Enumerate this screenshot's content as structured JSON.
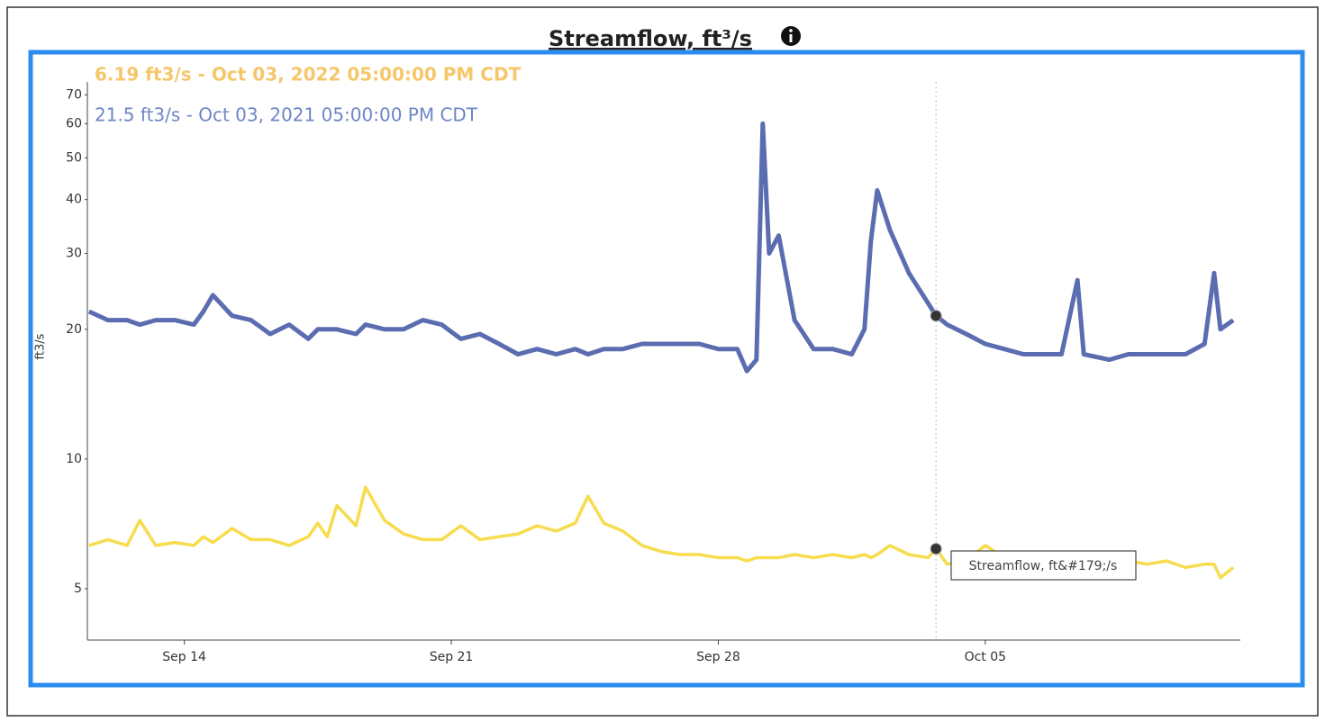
{
  "chart_data": {
    "type": "line",
    "title": "Streamflow, ft³/s",
    "y_label": "ft3/s",
    "annotations": [
      "6.19 ft3/s - Oct 03, 2022 05:00:00 PM CDT",
      "21.5 ft3/s - Oct 03, 2021 05:00:00 PM CDT"
    ],
    "tooltip": "Streamflow, ft&#179;/s",
    "log_scale": true,
    "grid": false,
    "xlim": [
      "09-11 11:00",
      "10-11 16:30"
    ],
    "xticks": [
      {
        "value": "09-14 00:00",
        "label": "Sep 14"
      },
      {
        "value": "09-21 00:00",
        "label": "Sep 21"
      },
      {
        "value": "09-28 00:00",
        "label": "Sep 28"
      },
      {
        "value": "10-05 00:00",
        "label": "Oct 05"
      }
    ],
    "ylim": [
      3.8,
      75
    ],
    "yticks": [
      5,
      10,
      20,
      30,
      40,
      50,
      60,
      70
    ],
    "hover": {
      "x": "10-03 17:00",
      "values": [
        21.5,
        6.19
      ]
    },
    "x": [
      "09-11 12:00",
      "09-12 00:00",
      "09-12 12:00",
      "09-12 20:00",
      "09-13 06:00",
      "09-13 18:00",
      "09-14 06:00",
      "09-14 12:00",
      "09-14 18:00",
      "09-15 06:00",
      "09-15 18:00",
      "09-16 06:00",
      "09-16 18:00",
      "09-17 06:00",
      "09-17 12:00",
      "09-17 18:00",
      "09-18 00:00",
      "09-18 12:00",
      "09-18 18:00",
      "09-19 06:00",
      "09-19 18:00",
      "09-20 06:00",
      "09-20 18:00",
      "09-21 06:00",
      "09-21 18:00",
      "09-22 06:00",
      "09-22 18:00",
      "09-23 06:00",
      "09-23 18:00",
      "09-24 06:00",
      "09-24 14:00",
      "09-25 00:00",
      "09-25 12:00",
      "09-26 00:00",
      "09-26 12:00",
      "09-27 00:00",
      "09-27 12:00",
      "09-28 00:00",
      "09-28 12:00",
      "09-28 18:00",
      "09-29 00:00",
      "09-29 04:00",
      "09-29 08:00",
      "09-29 14:00",
      "09-30 00:00",
      "09-30 12:00",
      "10-01 00:00",
      "10-01 12:00",
      "10-01 20:00",
      "10-02 00:00",
      "10-02 04:00",
      "10-02 12:00",
      "10-03 00:00",
      "10-03 12:00",
      "10-03 17:00",
      "10-04 00:00",
      "10-04 12:00",
      "10-05 00:00",
      "10-05 12:00",
      "10-06 00:00",
      "10-06 12:00",
      "10-07 00:00",
      "10-07 10:00",
      "10-07 14:00",
      "10-08 06:00",
      "10-08 18:00",
      "10-09 06:00",
      "10-09 18:00",
      "10-10 06:00",
      "10-10 18:00",
      "10-11 00:00",
      "10-11 04:00",
      "10-11 12:00"
    ],
    "series": [
      {
        "color": "#5b6db0",
        "values": [
          22,
          21,
          21,
          20.5,
          21,
          21,
          20.5,
          22,
          24,
          21.5,
          21,
          19.5,
          20.5,
          19,
          20,
          20,
          20,
          19.5,
          20.5,
          20,
          20,
          21,
          20.5,
          19,
          19.5,
          18.5,
          17.5,
          18,
          17.5,
          18,
          17.5,
          18,
          18,
          18.5,
          18.5,
          18.5,
          18.5,
          18,
          18,
          16,
          17,
          60,
          30,
          33,
          21,
          18,
          18,
          17.5,
          20,
          32,
          42,
          34,
          27,
          23,
          21.5,
          20.5,
          19.5,
          18.5,
          18,
          17.5,
          17.5,
          17.5,
          26,
          17.5,
          17,
          17.5,
          17.5,
          17.5,
          17.5,
          18.5,
          27,
          20,
          21
        ]
      },
      {
        "color": "#f7dc4e",
        "values": [
          6.3,
          6.5,
          6.3,
          7.2,
          6.3,
          6.4,
          6.3,
          6.6,
          6.4,
          6.9,
          6.5,
          6.5,
          6.3,
          6.6,
          7.1,
          6.6,
          7.8,
          7.0,
          8.6,
          7.2,
          6.7,
          6.5,
          6.5,
          7.0,
          6.5,
          6.6,
          6.7,
          7.0,
          6.8,
          7.1,
          8.2,
          7.1,
          6.8,
          6.3,
          6.1,
          6.0,
          6.0,
          5.9,
          5.9,
          5.8,
          5.9,
          5.9,
          5.9,
          5.9,
          6.0,
          5.9,
          6.0,
          5.9,
          6.0,
          5.9,
          6.0,
          6.3,
          6.0,
          5.9,
          6.19,
          5.7,
          5.8,
          6.3,
          5.9,
          5.8,
          5.8,
          5.7,
          5.7,
          5.7,
          5.7,
          5.8,
          5.7,
          5.8,
          5.6,
          5.7,
          5.7,
          5.3,
          5.6
        ]
      }
    ]
  }
}
